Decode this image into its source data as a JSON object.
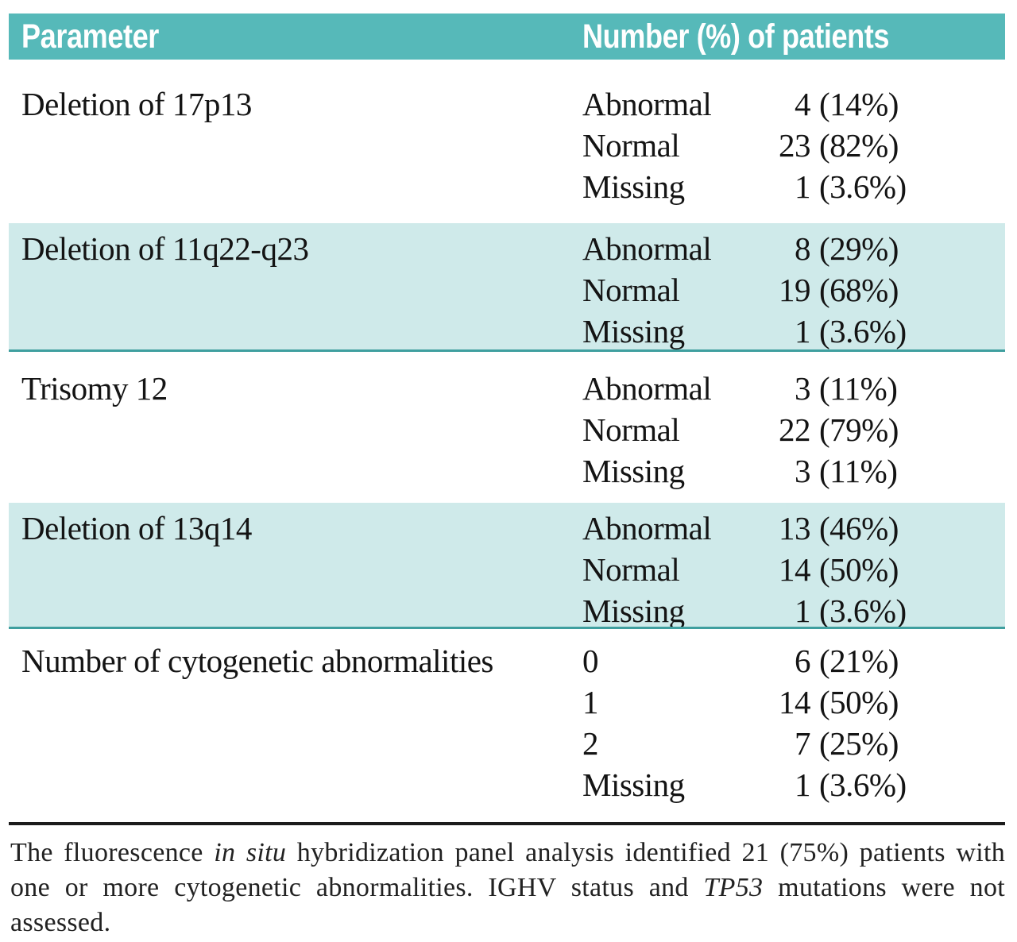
{
  "table": {
    "header": {
      "col1": "Parameter",
      "col2": "Number (%) of patients"
    },
    "rows": [
      {
        "parameter": "Deletion of 17p13",
        "shaded": false,
        "entries": [
          {
            "label": "Abnormal",
            "num": "4",
            "pct": "(14%)"
          },
          {
            "label": "Normal",
            "num": "23",
            "pct": "(82%)"
          },
          {
            "label": "Missing",
            "num": "1",
            "pct": "(3.6%)"
          }
        ]
      },
      {
        "parameter": "Deletion of 11q22-q23",
        "shaded": true,
        "entries": [
          {
            "label": "Abnormal",
            "num": "8",
            "pct": "(29%)"
          },
          {
            "label": "Normal",
            "num": "19",
            "pct": "(68%)"
          },
          {
            "label": "Missing",
            "num": "1",
            "pct": "(3.6%)"
          }
        ]
      },
      {
        "parameter": "Trisomy 12",
        "shaded": false,
        "entries": [
          {
            "label": "Abnormal",
            "num": "3",
            "pct": "(11%)"
          },
          {
            "label": "Normal",
            "num": "22",
            "pct": "(79%)"
          },
          {
            "label": "Missing",
            "num": "3",
            "pct": "(11%)"
          }
        ]
      },
      {
        "parameter": "Deletion of 13q14",
        "shaded": true,
        "entries": [
          {
            "label": "Abnormal",
            "num": "13",
            "pct": "(46%)"
          },
          {
            "label": "Normal",
            "num": "14",
            "pct": "(50%)"
          },
          {
            "label": "Missing",
            "num": "1",
            "pct": "(3.6%)"
          }
        ]
      },
      {
        "parameter": "Number of cytogenetic abnormalities",
        "shaded": false,
        "entries": [
          {
            "label": "0",
            "num": "6",
            "pct": "(21%)"
          },
          {
            "label": "1",
            "num": "14",
            "pct": "(50%)"
          },
          {
            "label": "2",
            "num": "7",
            "pct": "(25%)"
          },
          {
            "label": "Missing",
            "num": "1",
            "pct": "(3.6%)"
          }
        ]
      }
    ]
  },
  "footnote": {
    "segments": [
      {
        "text": "The fluorescence ",
        "italic": false
      },
      {
        "text": "in situ",
        "italic": true
      },
      {
        "text": " hybridization panel analysis identified 21 (75%) patients with one or more cytogenetic abnormalities. IGHV status and ",
        "italic": false
      },
      {
        "text": "TP53",
        "italic": true
      },
      {
        "text": " mutations were not assessed.",
        "italic": false
      }
    ]
  },
  "colors": {
    "header_teal": "#56b9b9",
    "band_teal": "#cfeaea",
    "divider_teal": "#3f9f9f",
    "rule_black": "#1b1b1b",
    "body_text": "#141414",
    "header_text": "#ffffff"
  }
}
